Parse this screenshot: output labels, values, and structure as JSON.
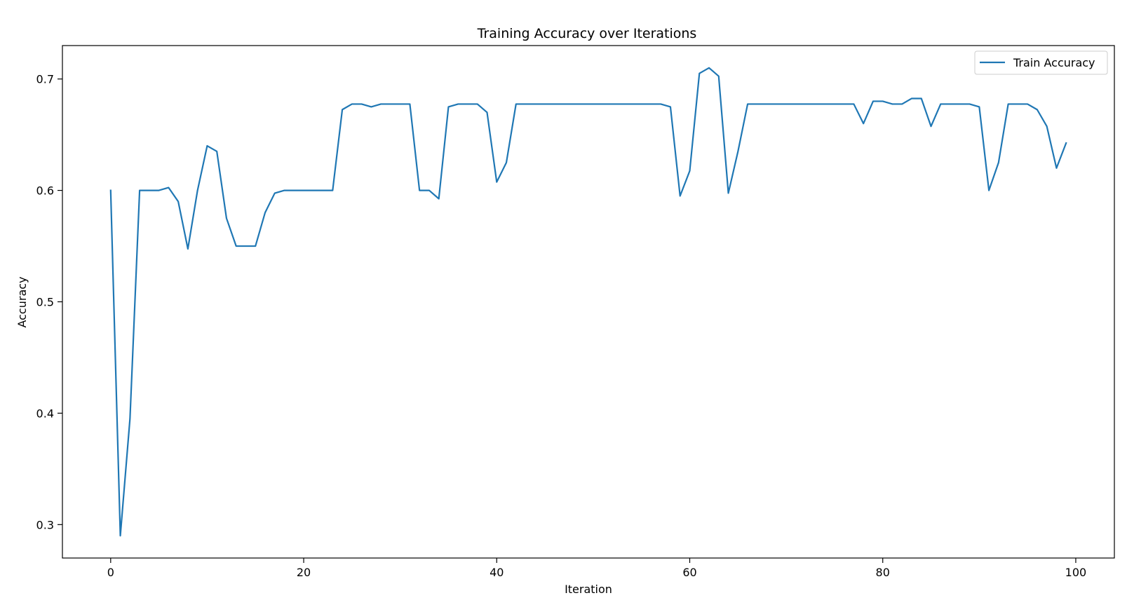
{
  "chart_data": {
    "type": "line",
    "title": "Training Accuracy over Iterations",
    "xlabel": "Iteration",
    "ylabel": "Accuracy",
    "xlim": [
      -5,
      104
    ],
    "ylim": [
      0.27,
      0.73
    ],
    "x_ticks": [
      0,
      20,
      40,
      60,
      80,
      100
    ],
    "y_ticks": [
      0.3,
      0.4,
      0.5,
      0.6,
      0.7
    ],
    "grid": false,
    "legend_position": "top-right",
    "series": [
      {
        "name": "Train Accuracy",
        "color": "#1f77b4",
        "x": [
          0,
          1,
          2,
          3,
          4,
          5,
          6,
          7,
          8,
          9,
          10,
          11,
          12,
          13,
          14,
          15,
          16,
          17,
          18,
          19,
          20,
          21,
          22,
          23,
          24,
          25,
          26,
          27,
          28,
          29,
          30,
          31,
          32,
          33,
          34,
          35,
          36,
          37,
          38,
          39,
          40,
          41,
          42,
          43,
          44,
          45,
          46,
          47,
          48,
          49,
          50,
          51,
          52,
          53,
          54,
          55,
          56,
          57,
          58,
          59,
          60,
          61,
          62,
          63,
          64,
          65,
          66,
          67,
          68,
          69,
          70,
          71,
          72,
          73,
          74,
          75,
          76,
          77,
          78,
          79,
          80,
          81,
          82,
          83,
          84,
          85,
          86,
          87,
          88,
          89,
          90,
          91,
          92,
          93,
          94,
          95,
          96,
          97,
          98,
          99
        ],
        "y": [
          0.6,
          0.29,
          0.395,
          0.6,
          0.6,
          0.6,
          0.6025,
          0.59,
          0.5475,
          0.6,
          0.64,
          0.635,
          0.575,
          0.55,
          0.55,
          0.55,
          0.58,
          0.5975,
          0.6,
          0.6,
          0.6,
          0.6,
          0.6,
          0.6,
          0.6725,
          0.6775,
          0.6775,
          0.675,
          0.6775,
          0.6775,
          0.6775,
          0.6775,
          0.6,
          0.6,
          0.5925,
          0.675,
          0.6775,
          0.6775,
          0.6775,
          0.67,
          0.6075,
          0.625,
          0.6775,
          0.6775,
          0.6775,
          0.6775,
          0.6775,
          0.6775,
          0.6775,
          0.6775,
          0.6775,
          0.6775,
          0.6775,
          0.6775,
          0.6775,
          0.6775,
          0.6775,
          0.6775,
          0.675,
          0.595,
          0.6175,
          0.705,
          0.71,
          0.7025,
          0.5975,
          0.635,
          0.6775,
          0.6775,
          0.6775,
          0.6775,
          0.6775,
          0.6775,
          0.6775,
          0.6775,
          0.6775,
          0.6775,
          0.6775,
          0.6775,
          0.66,
          0.68,
          0.68,
          0.6775,
          0.6775,
          0.6825,
          0.6825,
          0.6575,
          0.6775,
          0.6775,
          0.6775,
          0.6775,
          0.675,
          0.6,
          0.625,
          0.6775,
          0.6775,
          0.6775,
          0.6725,
          0.6575,
          0.62,
          0.6425
        ]
      }
    ]
  }
}
